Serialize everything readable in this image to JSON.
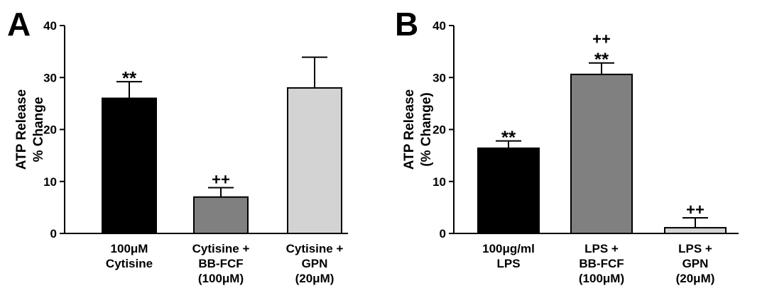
{
  "chart_data": [
    {
      "type": "bar",
      "panel_label": "A",
      "ylabel": [
        "ATP Release",
        "% Change"
      ],
      "ylim": [
        0,
        40
      ],
      "yticks": [
        "0",
        "10",
        "20",
        "30",
        "40"
      ],
      "categories": [
        [
          "100μM",
          "Cytisine"
        ],
        [
          "Cytisine +",
          "BB-FCF",
          "(100μM)"
        ],
        [
          "Cytisine +",
          "GPN",
          "(20μM)"
        ]
      ],
      "values": [
        26.0,
        7.0,
        28.0
      ],
      "errors": [
        3.2,
        1.8,
        5.9
      ],
      "annotations": [
        [
          "**"
        ],
        [
          "++"
        ],
        []
      ],
      "bar_colors": [
        "#000000",
        "#808080",
        "#d3d3d3"
      ]
    },
    {
      "type": "bar",
      "panel_label": "B",
      "ylabel": [
        "ATP Release",
        "(% Change)"
      ],
      "ylim": [
        0,
        40
      ],
      "yticks": [
        "0",
        "10",
        "20",
        "30",
        "40"
      ],
      "categories": [
        [
          "100μg/ml",
          "LPS"
        ],
        [
          "LPS +",
          "BB-FCF",
          "(100μM)"
        ],
        [
          "LPS +",
          "GPN",
          "(20μM)"
        ]
      ],
      "values": [
        16.4,
        30.6,
        1.1
      ],
      "errors": [
        1.4,
        2.2,
        1.9
      ],
      "annotations": [
        [
          "**"
        ],
        [
          "++",
          "**"
        ],
        [
          "++"
        ]
      ],
      "bar_colors": [
        "#000000",
        "#808080",
        "#d3d3d3"
      ]
    }
  ]
}
